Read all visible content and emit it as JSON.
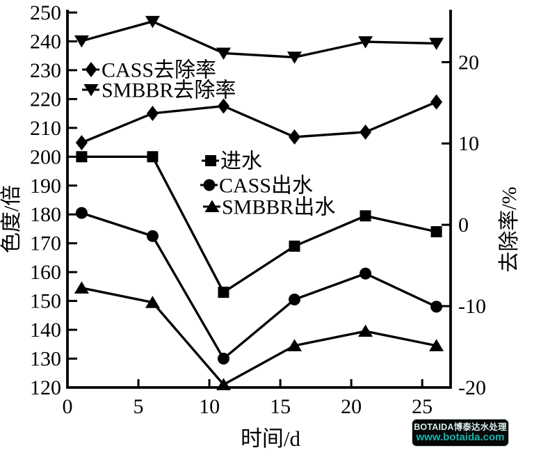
{
  "watermark": {
    "line1": "BOTAIDA博泰达水处理",
    "line2": "www.botaida.com",
    "bg_color": "#070707",
    "line1_color": "#d9edec",
    "line2_color": "#17b3ab"
  },
  "chart_data": {
    "type": "line",
    "title": "",
    "xlabel": "时间/d",
    "ylabel_left": "色度/倍",
    "ylabel_right": "去除率/%",
    "xlim": [
      0,
      27
    ],
    "x_ticks": [
      0,
      5,
      10,
      15,
      20,
      25
    ],
    "ylim_left": [
      120,
      250
    ],
    "y_ticks_left": [
      120,
      130,
      140,
      150,
      160,
      170,
      180,
      190,
      200,
      210,
      220,
      230,
      240,
      250
    ],
    "ylim_right": [
      -20,
      26.1
    ],
    "y_ticks_right": [
      20,
      10,
      0,
      -10,
      -20
    ],
    "grid": false,
    "line_color": "#000000",
    "x": [
      1,
      6,
      11,
      16,
      21,
      26
    ],
    "series": [
      {
        "name": "进水",
        "axis": "left",
        "marker": "square",
        "values": [
          200,
          200,
          153,
          169,
          179.5,
          174
        ]
      },
      {
        "name": "CASS出水",
        "axis": "left",
        "marker": "circle",
        "values": [
          180.5,
          172.5,
          130,
          150.5,
          159.5,
          148
        ]
      },
      {
        "name": "SMBBR出水",
        "axis": "left",
        "marker": "triangle-up",
        "values": [
          154.5,
          149.5,
          121,
          134.5,
          139.5,
          134.5
        ]
      },
      {
        "name": "CASS去除率",
        "axis": "right",
        "marker": "diamond",
        "values": [
          10.1,
          13.7,
          14.6,
          10.8,
          11.4,
          15.1
        ]
      },
      {
        "name": "SMBBR去除率",
        "axis": "right",
        "marker": "triangle-down",
        "values": [
          22.6,
          25.0,
          21.1,
          20.6,
          22.5,
          22.3
        ]
      }
    ],
    "legends": [
      {
        "items": [
          "CASS去除率",
          "SMBBR去除率"
        ]
      },
      {
        "items": [
          "进水",
          "CASS出水",
          "SMBBR出水"
        ]
      }
    ],
    "legend_position": "inside-plot"
  }
}
